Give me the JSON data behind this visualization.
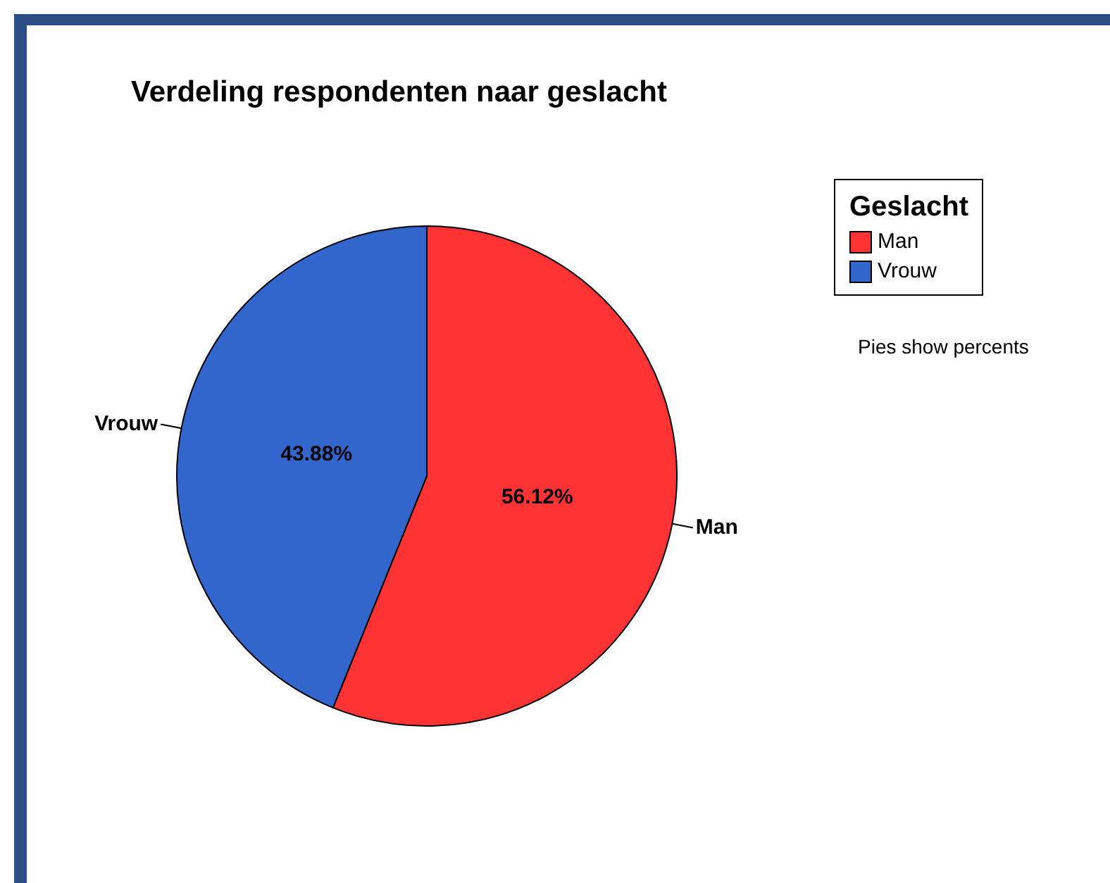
{
  "chart_data": {
    "type": "pie",
    "title": "Verdeling respondenten naar geslacht",
    "categories": [
      "Man",
      "Vrouw"
    ],
    "values": [
      56.12,
      43.88
    ],
    "colors": [
      "#ff3333",
      "#3366cc"
    ],
    "value_labels": [
      "56.12%",
      "43.88%"
    ],
    "legend": "right",
    "legend_title": "Geslacht",
    "annotations": [
      "Pies show percents"
    ]
  }
}
